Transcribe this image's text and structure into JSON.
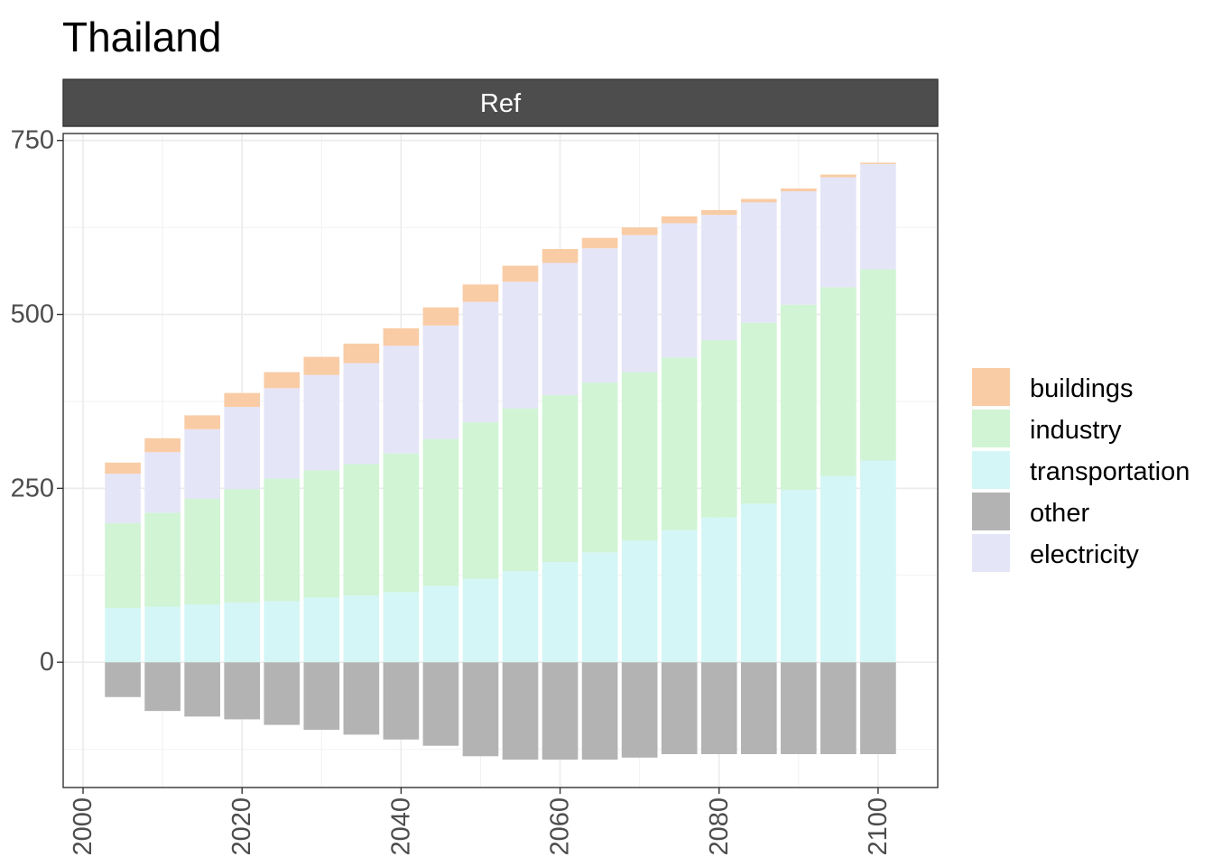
{
  "chart_data": {
    "type": "bar",
    "stacked": true,
    "title": "Thailand",
    "facet_label": "Ref",
    "xlabel": "",
    "ylabel": "",
    "x": [
      2005,
      2010,
      2015,
      2020,
      2025,
      2030,
      2035,
      2040,
      2045,
      2050,
      2055,
      2060,
      2065,
      2070,
      2075,
      2080,
      2085,
      2090,
      2095,
      2100
    ],
    "x_ticks": [
      "2000",
      "2020",
      "2040",
      "2060",
      "2080",
      "2100"
    ],
    "x_tick_values": [
      2000,
      2020,
      2040,
      2060,
      2080,
      2100
    ],
    "y_ticks": [
      "0",
      "250",
      "500",
      "750"
    ],
    "y_tick_values": [
      0,
      250,
      500,
      750
    ],
    "xlim": [
      1997.5,
      2107.5
    ],
    "ylim": [
      -180,
      760
    ],
    "grid": true,
    "legend_position": "right",
    "series": [
      {
        "name": "other",
        "color": "#b3b3b3",
        "values": [
          -50,
          -70,
          -78,
          -82,
          -90,
          -97,
          -104,
          -111,
          -120,
          -135,
          -140,
          -140,
          -140,
          -137,
          -132,
          -132,
          -132,
          -132,
          -132,
          -132
        ]
      },
      {
        "name": "transportation",
        "color": "#d4f6f6",
        "values": [
          78,
          80,
          83,
          86,
          88,
          93,
          96,
          101,
          110,
          120,
          131,
          144,
          158,
          175,
          190,
          208,
          228,
          248,
          268,
          290
        ]
      },
      {
        "name": "industry",
        "color": "#d0f4d4",
        "values": [
          122,
          135,
          152,
          163,
          176,
          183,
          189,
          199,
          211,
          225,
          234,
          240,
          244,
          242,
          248,
          255,
          260,
          266,
          271,
          275
        ]
      },
      {
        "name": "electricity",
        "color": "#e5e5f8",
        "values": [
          71,
          87,
          100,
          118,
          130,
          137,
          145,
          155,
          163,
          173,
          182,
          190,
          193,
          197,
          193,
          180,
          173,
          163,
          158,
          151
        ]
      },
      {
        "name": "buildings",
        "color": "#f9cca5",
        "values": [
          16,
          20,
          20,
          20,
          23,
          26,
          28,
          25,
          26,
          25,
          23,
          20,
          15,
          11,
          10,
          7,
          5,
          4,
          4,
          2
        ]
      }
    ],
    "legend_order": [
      "buildings",
      "industry",
      "transportation",
      "other",
      "electricity"
    ]
  }
}
